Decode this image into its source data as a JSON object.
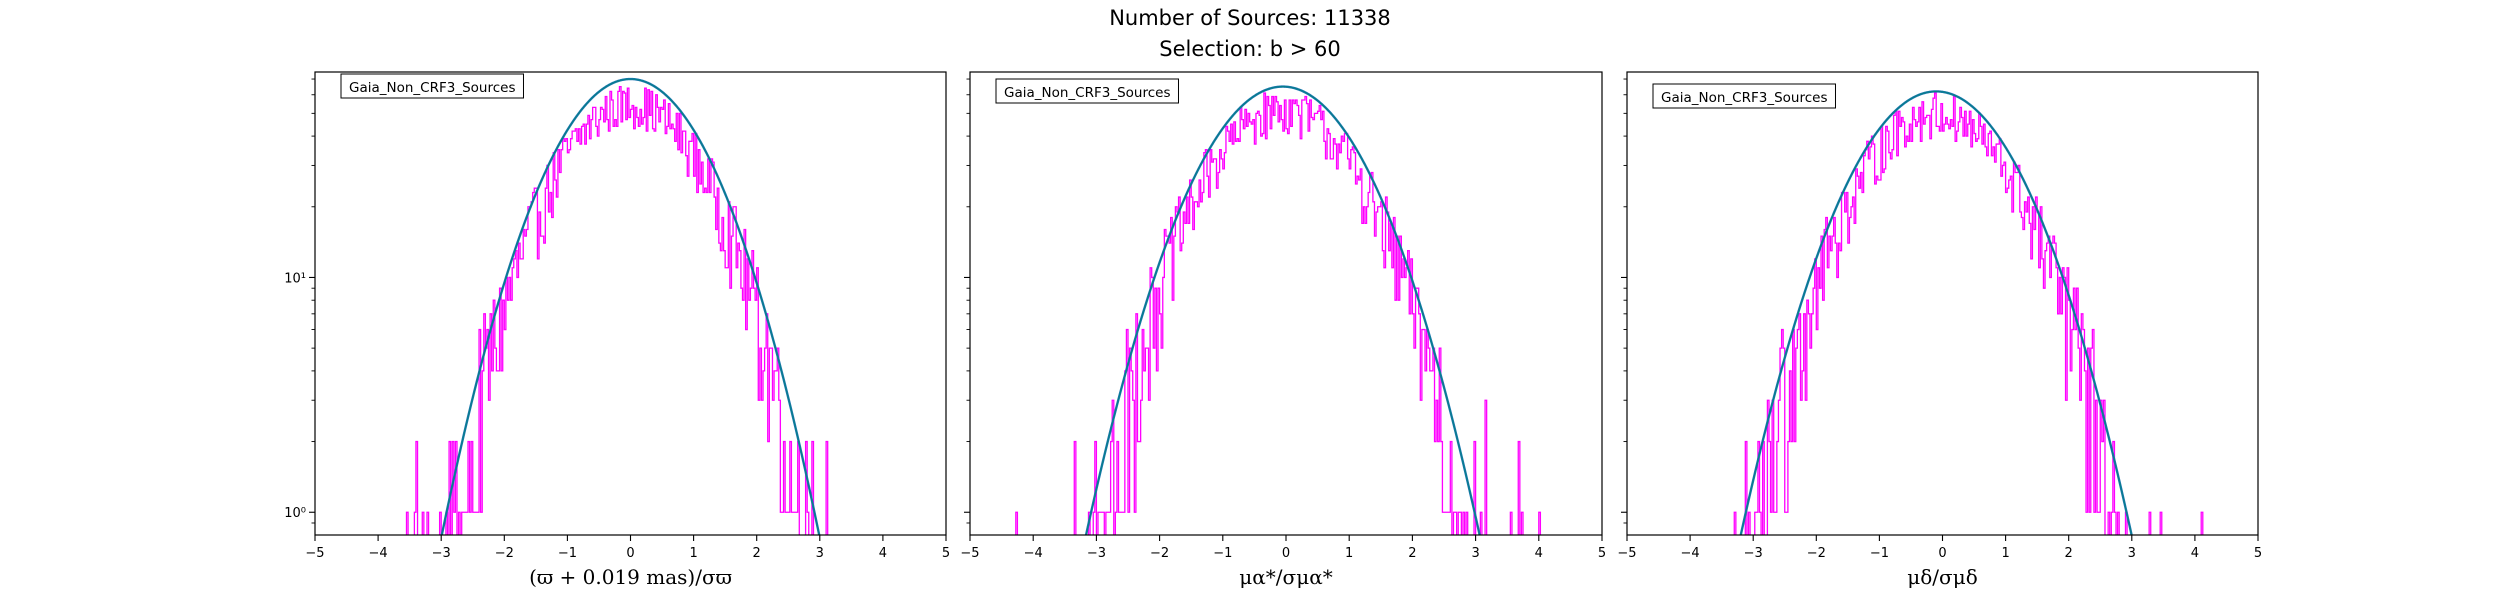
{
  "figure": {
    "title_line1": "Number of Sources: 11338",
    "title_line2": "Selection: b > 60"
  },
  "colors": {
    "histogram": "#ff00ff",
    "fit_curve_outer": "#1f77b4",
    "fit_curve_inner": "#008080"
  },
  "chart_data": [
    {
      "type": "line",
      "subtype": "histogram-with-gaussian-fit",
      "legend": "Gaia_Non_CRF3_Sources",
      "legend_position": "upper-left",
      "xlabel": "(ϖ + 0.019 mas)/σϖ",
      "xlim": [
        -5,
        5
      ],
      "ylim": [
        0.8,
        75
      ],
      "yscale": "log",
      "xticks": [
        -5,
        -4,
        -3,
        -2,
        -1,
        0,
        1,
        2,
        3,
        4,
        5
      ],
      "yticks": [
        {
          "value": 1,
          "label": "10⁰"
        },
        {
          "value": 10,
          "label": "10¹"
        }
      ],
      "gaussian_fit": {
        "amplitude": 70,
        "mean": 0.0,
        "sigma": 1.0
      },
      "histogram_peak": 55,
      "histogram_center": 0.0,
      "histogram_sigma": 1.0
    },
    {
      "type": "line",
      "subtype": "histogram-with-gaussian-fit",
      "legend": "Gaia_Non_CRF3_Sources",
      "legend_position": "upper-left",
      "xlabel": "μα*/σμα*",
      "xlim": [
        -5,
        5
      ],
      "ylim": [
        0.8,
        75
      ],
      "yscale": "log",
      "xticks": [
        -5,
        -4,
        -3,
        -2,
        -1,
        0,
        1,
        2,
        3,
        4,
        5
      ],
      "yticks": [
        {
          "value": 1,
          "label": ""
        },
        {
          "value": 10,
          "label": ""
        }
      ],
      "gaussian_fit": {
        "amplitude": 65,
        "mean": -0.05,
        "sigma": 1.05
      },
      "histogram_peak": 52,
      "histogram_center": -0.05,
      "histogram_sigma": 1.05
    },
    {
      "type": "line",
      "subtype": "histogram-with-gaussian-fit",
      "legend": "Gaia_Non_CRF3_Sources",
      "legend_position": "upper-left",
      "xlabel": "μδ/σμδ",
      "xlim": [
        -5,
        5
      ],
      "ylim": [
        0.8,
        75
      ],
      "yscale": "log",
      "xticks": [
        -5,
        -4,
        -3,
        -2,
        -1,
        0,
        1,
        2,
        3,
        4,
        5
      ],
      "yticks": [
        {
          "value": 1,
          "label": ""
        },
        {
          "value": 10,
          "label": ""
        }
      ],
      "gaussian_fit": {
        "amplitude": 62,
        "mean": -0.1,
        "sigma": 1.05
      },
      "histogram_peak": 50,
      "histogram_center": -0.1,
      "histogram_sigma": 1.05
    }
  ]
}
